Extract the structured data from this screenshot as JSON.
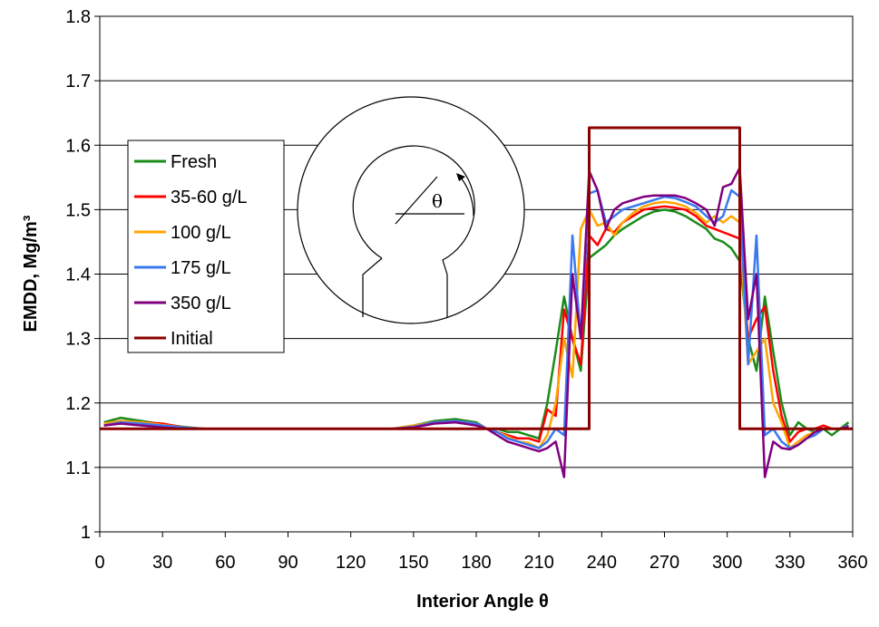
{
  "chart_data": {
    "type": "line",
    "xlabel": "Interior Angle θ",
    "ylabel": "EMDD, Mg/m³",
    "inset_label": "θ",
    "xlim": [
      0,
      360
    ],
    "xticks": [
      0,
      30,
      60,
      90,
      120,
      150,
      180,
      210,
      240,
      270,
      300,
      330,
      360
    ],
    "ylim": [
      1,
      1.8
    ],
    "yticks": [
      1,
      1.1,
      1.2,
      1.3,
      1.4,
      1.5,
      1.6,
      1.7,
      1.8
    ],
    "grid": true,
    "x": [
      2,
      10,
      20,
      30,
      40,
      50,
      60,
      80,
      100,
      120,
      140,
      150,
      160,
      170,
      180,
      185,
      190,
      195,
      200,
      205,
      210,
      214,
      218,
      222,
      226,
      230,
      234,
      238,
      242,
      246,
      250,
      255,
      260,
      265,
      270,
      275,
      280,
      285,
      290,
      294,
      298,
      302,
      306,
      310,
      314,
      318,
      322,
      326,
      330,
      334,
      338,
      342,
      346,
      350,
      354,
      358
    ],
    "series": [
      {
        "name": "Fresh",
        "color": "#1a8c1a",
        "values": [
          1.17,
          1.177,
          1.172,
          1.167,
          1.163,
          1.16,
          1.16,
          1.16,
          1.16,
          1.16,
          1.16,
          1.165,
          1.172,
          1.175,
          1.17,
          1.16,
          1.16,
          1.155,
          1.155,
          1.15,
          1.145,
          1.2,
          1.28,
          1.365,
          1.3,
          1.25,
          1.425,
          1.435,
          1.445,
          1.46,
          1.47,
          1.48,
          1.49,
          1.497,
          1.5,
          1.497,
          1.49,
          1.48,
          1.47,
          1.455,
          1.45,
          1.44,
          1.42,
          1.3,
          1.25,
          1.365,
          1.28,
          1.2,
          1.15,
          1.17,
          1.16,
          1.155,
          1.16,
          1.15,
          1.16,
          1.17
        ]
      },
      {
        "name": "35-60 g/L",
        "color": "#ff0000",
        "values": [
          1.168,
          1.172,
          1.17,
          1.168,
          1.162,
          1.16,
          1.16,
          1.16,
          1.16,
          1.16,
          1.16,
          1.163,
          1.17,
          1.172,
          1.168,
          1.16,
          1.155,
          1.15,
          1.145,
          1.145,
          1.14,
          1.19,
          1.18,
          1.345,
          1.3,
          1.26,
          1.46,
          1.445,
          1.47,
          1.465,
          1.48,
          1.49,
          1.5,
          1.503,
          1.505,
          1.503,
          1.5,
          1.49,
          1.475,
          1.47,
          1.465,
          1.46,
          1.455,
          1.3,
          1.33,
          1.35,
          1.25,
          1.18,
          1.14,
          1.155,
          1.16,
          1.16,
          1.165,
          1.16,
          1.16,
          1.165
        ]
      },
      {
        "name": "100 g/L",
        "color": "#ffa500",
        "values": [
          1.168,
          1.172,
          1.17,
          1.166,
          1.162,
          1.16,
          1.16,
          1.16,
          1.16,
          1.16,
          1.16,
          1.165,
          1.17,
          1.172,
          1.168,
          1.16,
          1.155,
          1.148,
          1.14,
          1.138,
          1.13,
          1.15,
          1.2,
          1.3,
          1.24,
          1.47,
          1.5,
          1.475,
          1.48,
          1.46,
          1.48,
          1.495,
          1.505,
          1.51,
          1.512,
          1.51,
          1.505,
          1.495,
          1.48,
          1.49,
          1.48,
          1.49,
          1.48,
          1.26,
          1.28,
          1.3,
          1.2,
          1.17,
          1.13,
          1.14,
          1.15,
          1.155,
          1.16,
          1.16,
          1.16,
          1.165
        ]
      },
      {
        "name": "175 g/L",
        "color": "#3a78f0",
        "values": [
          1.165,
          1.17,
          1.168,
          1.165,
          1.162,
          1.16,
          1.16,
          1.16,
          1.16,
          1.16,
          1.16,
          1.163,
          1.17,
          1.172,
          1.168,
          1.16,
          1.155,
          1.145,
          1.14,
          1.135,
          1.13,
          1.14,
          1.16,
          1.15,
          1.46,
          1.3,
          1.525,
          1.53,
          1.48,
          1.49,
          1.5,
          1.505,
          1.51,
          1.515,
          1.52,
          1.518,
          1.512,
          1.505,
          1.49,
          1.48,
          1.49,
          1.53,
          1.52,
          1.26,
          1.46,
          1.15,
          1.16,
          1.14,
          1.13,
          1.135,
          1.145,
          1.15,
          1.16,
          1.16,
          1.16,
          1.165
        ]
      },
      {
        "name": "350 g/L",
        "color": "#800080",
        "values": [
          1.165,
          1.168,
          1.165,
          1.162,
          1.16,
          1.16,
          1.16,
          1.16,
          1.16,
          1.16,
          1.16,
          1.162,
          1.168,
          1.17,
          1.165,
          1.16,
          1.15,
          1.14,
          1.135,
          1.13,
          1.125,
          1.13,
          1.14,
          1.085,
          1.4,
          1.3,
          1.56,
          1.53,
          1.47,
          1.5,
          1.51,
          1.515,
          1.52,
          1.522,
          1.522,
          1.522,
          1.518,
          1.51,
          1.5,
          1.475,
          1.535,
          1.54,
          1.565,
          1.33,
          1.4,
          1.085,
          1.14,
          1.13,
          1.128,
          1.135,
          1.145,
          1.155,
          1.16,
          1.16,
          1.16,
          1.163
        ]
      },
      {
        "name": "Initial",
        "color": "#8b0000",
        "x": [
          0,
          234,
          234,
          306,
          306,
          360
        ],
        "values": [
          1.16,
          1.16,
          1.627,
          1.627,
          1.16,
          1.16
        ]
      }
    ]
  }
}
